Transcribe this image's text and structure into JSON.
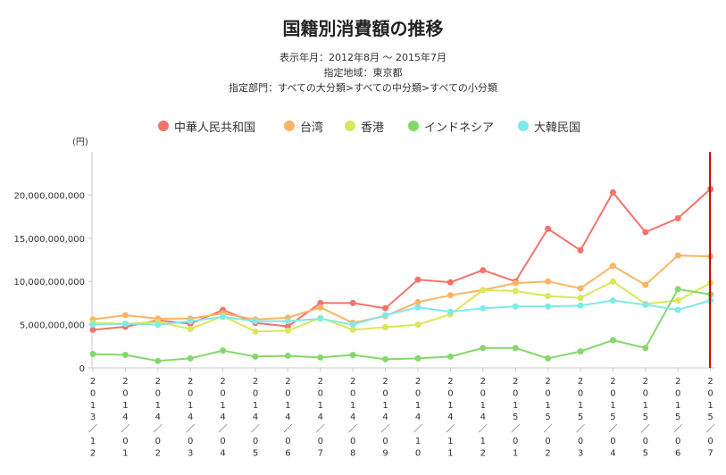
{
  "header": {
    "title": "国籍別消費額の推移",
    "period": "表示年月：2012年8月 〜 2015年7月",
    "region": "指定地域：東京都",
    "category": "指定部門：すべての大分類>すべての中分類>すべての小分類"
  },
  "colors": {
    "china": "#f4736b",
    "taiwan": "#fbb463",
    "hongkong": "#d9e75a",
    "indonesia": "#85d86a",
    "korea": "#7eeaea",
    "marker_line": "#cc0000"
  },
  "chart_data": {
    "type": "line",
    "unit_label": "(円)",
    "ylim": [
      0,
      25000000000
    ],
    "yticks": [
      {
        "value": 0,
        "label": "0"
      },
      {
        "value": 5000000000,
        "label": "5,000,000,000"
      },
      {
        "value": 10000000000,
        "label": "10,000,000,000"
      },
      {
        "value": 15000000000,
        "label": "15,000,000,000"
      },
      {
        "value": 20000000000,
        "label": "20,000,000,000"
      }
    ],
    "categories": [
      "2013/12",
      "2014/01",
      "2014/02",
      "2014/03",
      "2014/04",
      "2014/05",
      "2014/06",
      "2014/07",
      "2014/08",
      "2014/09",
      "2014/10",
      "2014/11",
      "2014/12",
      "2015/01",
      "2015/02",
      "2015/03",
      "2015/04",
      "2015/05",
      "2015/06",
      "2015/07"
    ],
    "legend_position": "top",
    "grid": false,
    "series": [
      {
        "name": "中華人民共和国",
        "color_key": "china",
        "values": [
          4400000000,
          4750000000,
          5500000000,
          5100000000,
          6700000000,
          5200000000,
          4800000000,
          7500000000,
          7500000000,
          6900000000,
          10200000000,
          9900000000,
          11300000000,
          10000000000,
          16100000000,
          13600000000,
          20300000000,
          15700000000,
          17300000000,
          20700000000
        ]
      },
      {
        "name": "台湾",
        "color_key": "taiwan",
        "values": [
          5600000000,
          6100000000,
          5700000000,
          5700000000,
          6300000000,
          5600000000,
          5800000000,
          7000000000,
          5200000000,
          6000000000,
          7600000000,
          8400000000,
          9000000000,
          9800000000,
          10000000000,
          9200000000,
          11800000000,
          9600000000,
          13000000000,
          12900000000
        ]
      },
      {
        "name": "香港",
        "color_key": "hongkong",
        "values": [
          5200000000,
          5100000000,
          5300000000,
          4500000000,
          6000000000,
          4200000000,
          4300000000,
          5800000000,
          4400000000,
          4700000000,
          5000000000,
          6200000000,
          9000000000,
          8900000000,
          8300000000,
          8100000000,
          10000000000,
          7400000000,
          7800000000,
          9800000000
        ]
      },
      {
        "name": "インドネシア",
        "color_key": "indonesia",
        "values": [
          1600000000,
          1500000000,
          800000000,
          1100000000,
          2000000000,
          1300000000,
          1400000000,
          1200000000,
          1500000000,
          1000000000,
          1100000000,
          1300000000,
          2300000000,
          2300000000,
          1100000000,
          1900000000,
          3200000000,
          2300000000,
          9100000000,
          8500000000
        ]
      },
      {
        "name": "大韓民国",
        "color_key": "korea",
        "values": [
          5000000000,
          5100000000,
          5000000000,
          5400000000,
          5900000000,
          5400000000,
          5400000000,
          5700000000,
          5000000000,
          6100000000,
          7000000000,
          6500000000,
          6900000000,
          7100000000,
          7100000000,
          7200000000,
          7800000000,
          7300000000,
          6700000000,
          7800000000
        ]
      }
    ]
  }
}
